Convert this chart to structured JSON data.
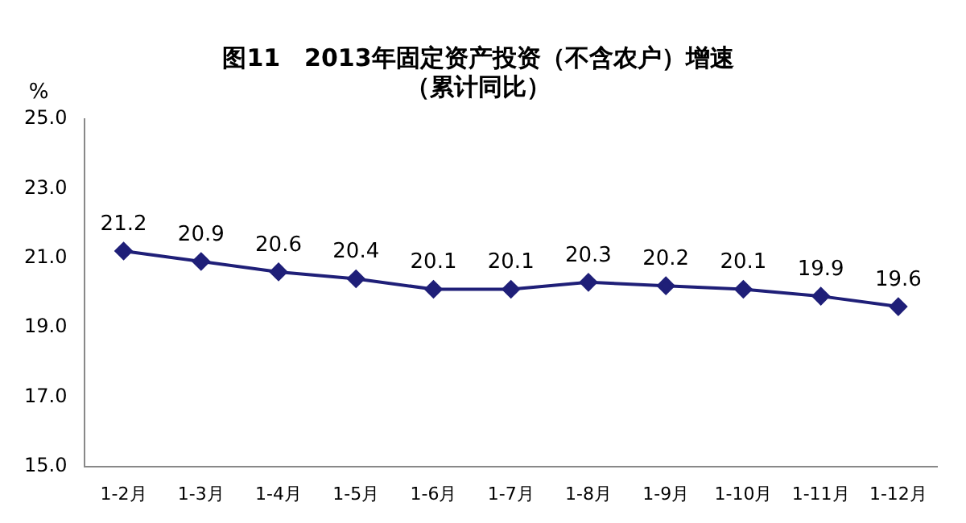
{
  "chart_data": {
    "type": "line",
    "title": "图11　2013年固定资产投资（不含农户）增速",
    "subtitle": "（累计同比）",
    "ylabel": "%",
    "categories": [
      "1-2月",
      "1-3月",
      "1-4月",
      "1-5月",
      "1-6月",
      "1-7月",
      "1-8月",
      "1-9月",
      "1-10月",
      "1-11月",
      "1-12月"
    ],
    "series": [
      {
        "color": "#1f1f78",
        "values": [
          21.2,
          20.9,
          20.6,
          20.4,
          20.1,
          20.1,
          20.3,
          20.2,
          20.1,
          19.9,
          19.6
        ]
      }
    ],
    "ylim": [
      15,
      25
    ],
    "yticks": [
      {
        "value": 15,
        "label": "15.0"
      },
      {
        "value": 17,
        "label": "17.0"
      },
      {
        "value": 19,
        "label": "19.0"
      },
      {
        "value": 21,
        "label": "21.0"
      },
      {
        "value": 23,
        "label": "23.0"
      },
      {
        "value": 25,
        "label": "25.0"
      }
    ],
    "grid": false,
    "legend": false,
    "marker": "diamond",
    "line_style": "solid",
    "data_labels": true
  }
}
